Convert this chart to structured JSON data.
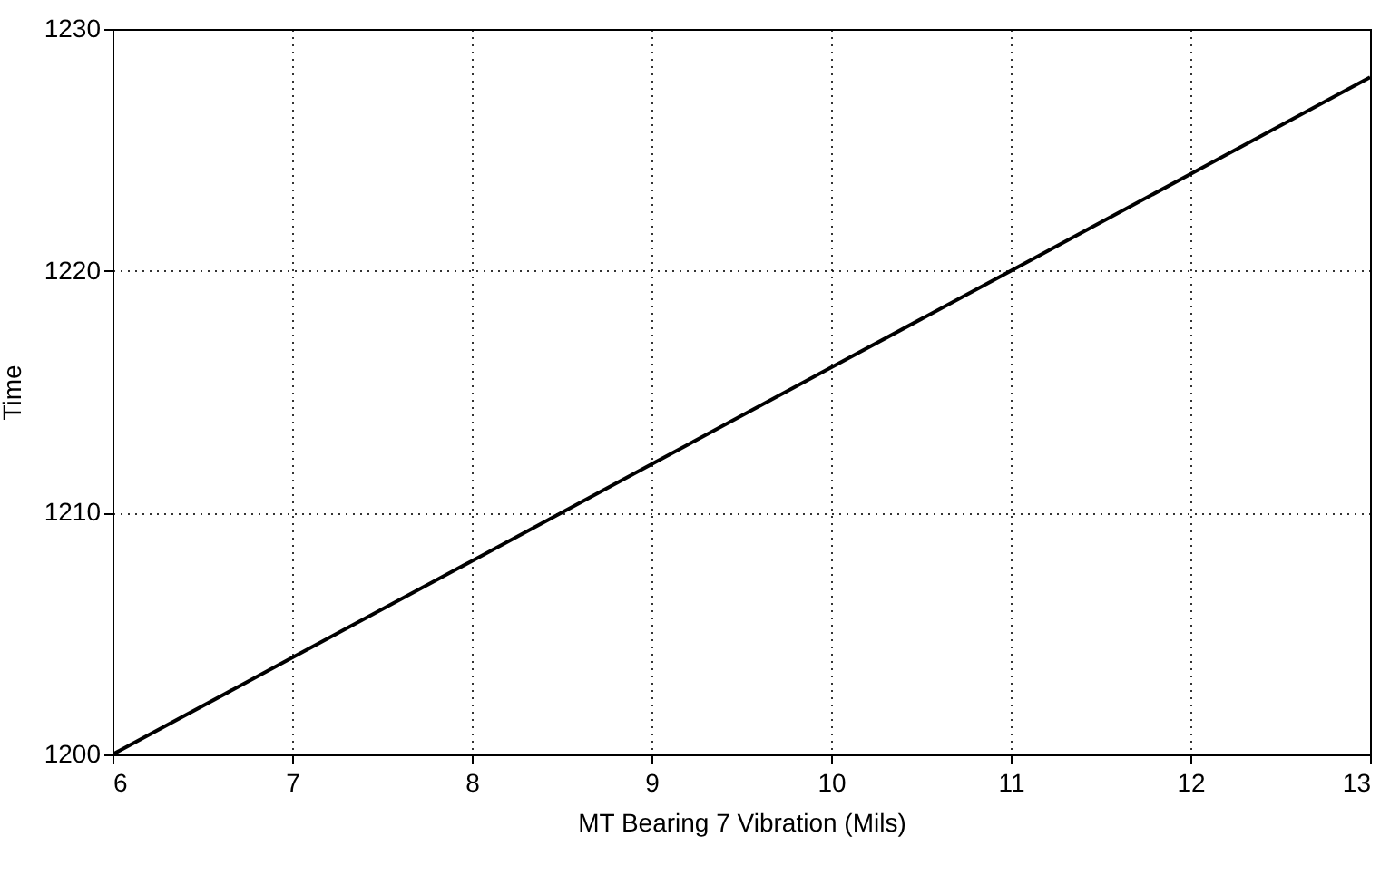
{
  "chart_data": {
    "type": "line",
    "xlabel": "MT Bearing 7 Vibration (Mils)",
    "ylabel": "Time",
    "x": [
      6,
      7,
      8,
      9,
      10,
      11,
      12,
      13
    ],
    "series": [
      {
        "color": "#000000",
        "values": [
          1200,
          1204,
          1208,
          1212,
          1216,
          1220,
          1224,
          1228
        ]
      }
    ],
    "xlim": [
      6,
      13
    ],
    "xticks": [
      6,
      7,
      8,
      9,
      10,
      11,
      12,
      13
    ],
    "ylim": [
      1200,
      1230
    ],
    "yticks": [
      1200,
      1210,
      1220,
      1230
    ],
    "grid": true,
    "marker": "none",
    "line_style": "solid"
  }
}
